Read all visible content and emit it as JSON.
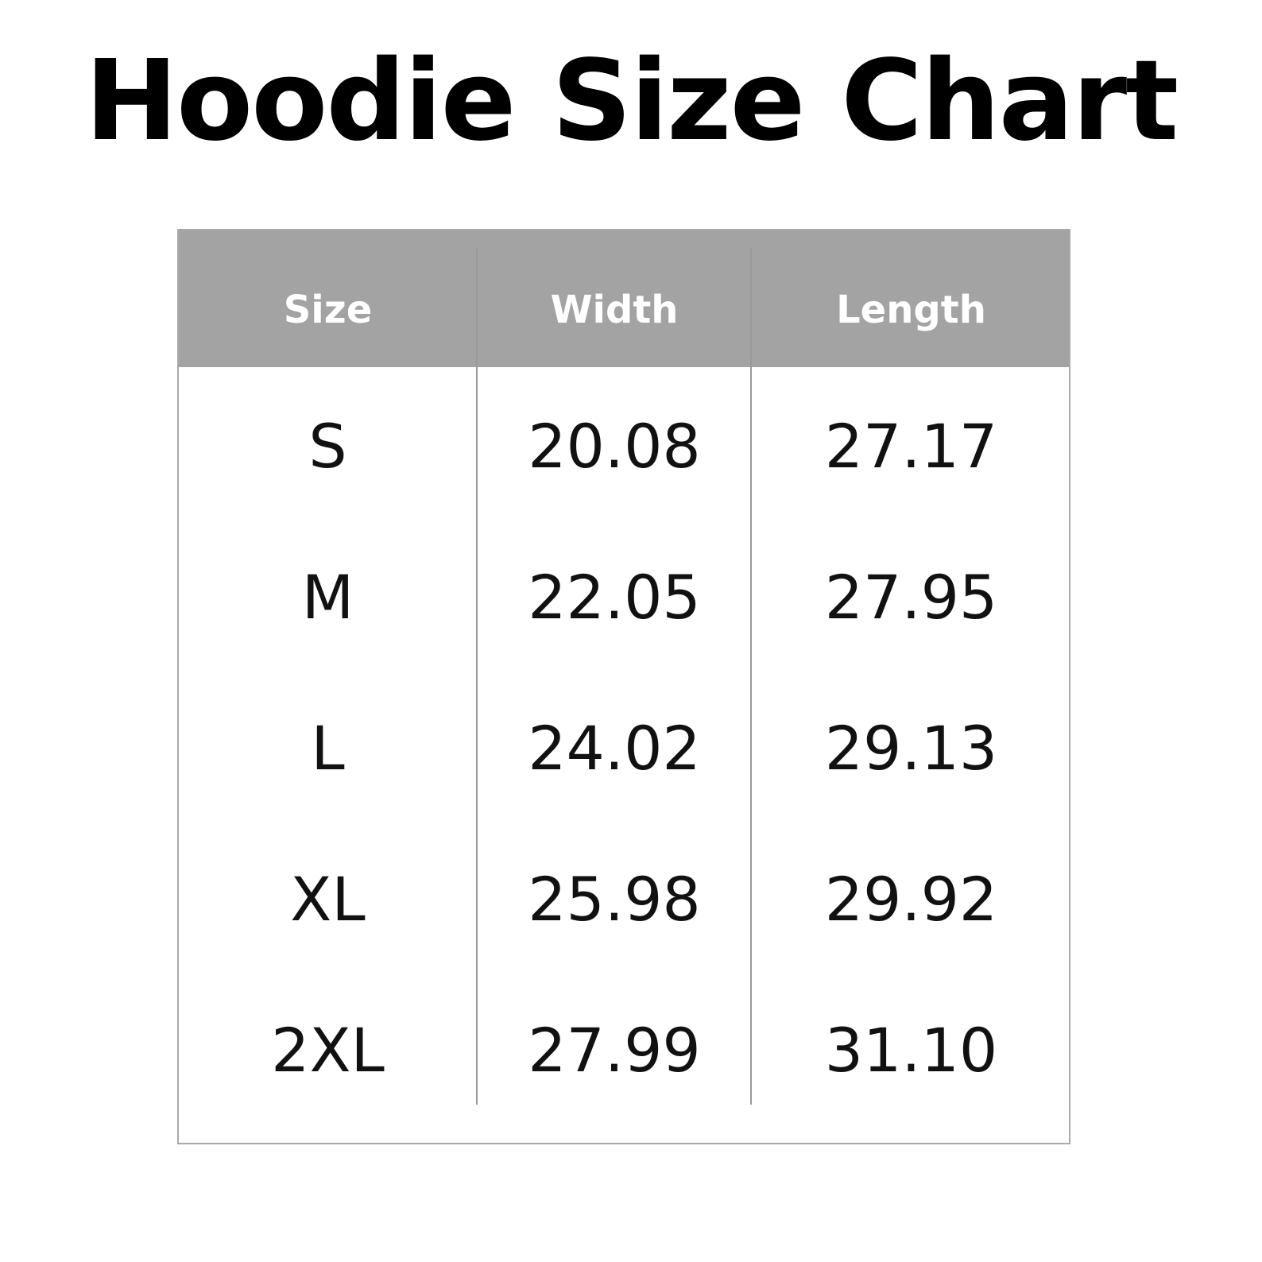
{
  "title": "Hoodie Size Chart",
  "table": {
    "headers": [
      "Size",
      "Width",
      "Length"
    ],
    "rows": [
      [
        "S",
        "20.08",
        "27.17"
      ],
      [
        "M",
        "22.05",
        "27.95"
      ],
      [
        "L",
        "24.02",
        "29.13"
      ],
      [
        "XL",
        "25.98",
        "29.92"
      ],
      [
        "2XL",
        "27.99",
        "31.10"
      ]
    ]
  },
  "colors": {
    "header_bg": "#a3a3a3",
    "header_text": "#ffffff",
    "border": "#a9a9a9",
    "text": "#111111"
  }
}
